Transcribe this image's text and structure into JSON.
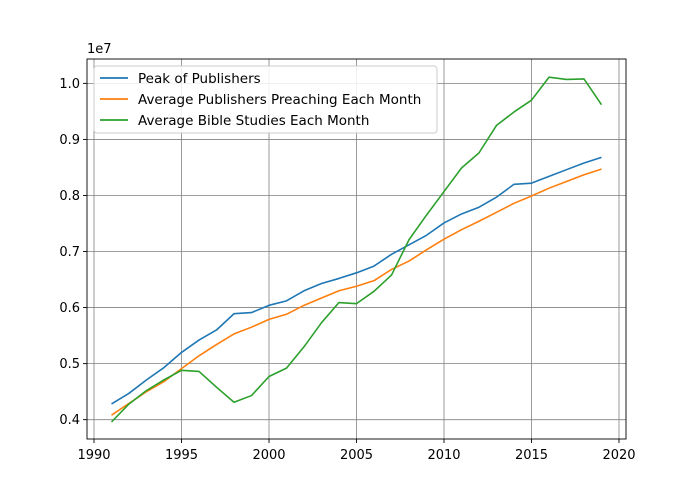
{
  "chart_data": {
    "type": "line",
    "title": "",
    "xlabel": "",
    "ylabel": "",
    "y_offset_label": "1e7",
    "xlim": [
      1989.6,
      2020.4
    ],
    "ylim": [
      0.3655,
      1.0435
    ],
    "grid": true,
    "legend_position": "top-left",
    "x_ticks": [
      1990,
      1995,
      2000,
      2005,
      2010,
      2015,
      2020
    ],
    "x_tick_labels": [
      "1990",
      "1995",
      "2000",
      "2005",
      "2010",
      "2015",
      "2020"
    ],
    "y_ticks": [
      0.4,
      0.5,
      0.6,
      0.7,
      0.8,
      0.9,
      1.0
    ],
    "y_tick_labels": [
      "0.4",
      "0.5",
      "0.6",
      "0.7",
      "0.8",
      "0.9",
      "1.0"
    ],
    "x": [
      1991,
      1992,
      1993,
      1994,
      1995,
      1996,
      1997,
      1998,
      1999,
      2000,
      2001,
      2002,
      2003,
      2004,
      2005,
      2006,
      2007,
      2008,
      2009,
      2010,
      2011,
      2012,
      2013,
      2014,
      2015,
      2016,
      2017,
      2018,
      2019
    ],
    "series": [
      {
        "name": "Peak of Publishers",
        "color": "#1f77b4",
        "values": [
          0.428,
          0.447,
          0.471,
          0.493,
          0.52,
          0.542,
          0.56,
          0.589,
          0.591,
          0.604,
          0.612,
          0.63,
          0.643,
          0.652,
          0.662,
          0.674,
          0.695,
          0.712,
          0.729,
          0.751,
          0.767,
          0.779,
          0.797,
          0.82,
          0.822,
          0.834,
          0.846,
          0.858,
          0.868
        ]
      },
      {
        "name": "Average Publishers Preaching Each Month",
        "color": "#ff7f0e",
        "values": [
          0.408,
          0.429,
          0.45,
          0.468,
          0.491,
          0.514,
          0.534,
          0.553,
          0.565,
          0.579,
          0.588,
          0.604,
          0.617,
          0.63,
          0.638,
          0.648,
          0.668,
          0.683,
          0.703,
          0.722,
          0.739,
          0.754,
          0.77,
          0.786,
          0.799,
          0.813,
          0.825,
          0.837,
          0.847
        ]
      },
      {
        "name": "Average Bible Studies Each Month",
        "color": "#2ca02c",
        "values": [
          0.396,
          0.428,
          0.452,
          0.471,
          0.488,
          0.486,
          0.458,
          0.431,
          0.443,
          0.477,
          0.492,
          0.53,
          0.573,
          0.609,
          0.607,
          0.629,
          0.658,
          0.721,
          0.765,
          0.807,
          0.849,
          0.876,
          0.925,
          0.949,
          0.97,
          1.011,
          1.007,
          1.008,
          0.962
        ]
      }
    ]
  }
}
